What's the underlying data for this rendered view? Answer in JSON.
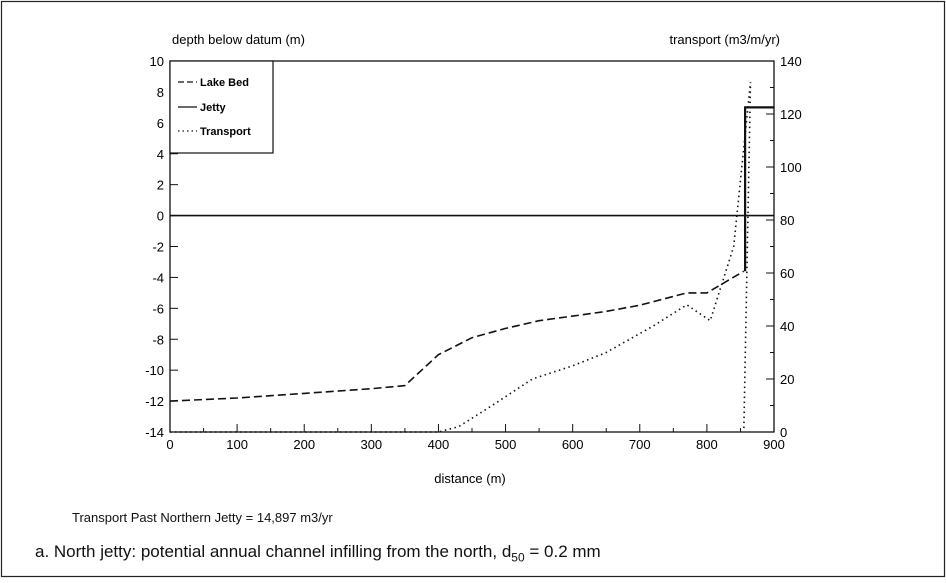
{
  "chart_data": {
    "type": "line",
    "xlabel": "distance (m)",
    "ylabel_left": "depth below datum (m)",
    "ylabel_right": "transport (m3/m/yr)",
    "xlim": [
      0,
      900
    ],
    "ylim_left": [
      -14,
      10
    ],
    "ylim_right": [
      0,
      140
    ],
    "x_ticks": [
      "0",
      "100",
      "200",
      "300",
      "400",
      "500",
      "600",
      "700",
      "800",
      "900"
    ],
    "y_left_ticks": [
      "10",
      "8",
      "6",
      "4",
      "2",
      "0",
      "-2",
      "-4",
      "-6",
      "-8",
      "-10",
      "-12",
      "-14"
    ],
    "y_right_ticks": [
      "140",
      "120",
      "100",
      "80",
      "60",
      "40",
      "20",
      "0"
    ],
    "legend": [
      "Lake Bed",
      "Jetty",
      "Transport"
    ],
    "legend_position": "top-left",
    "grid": false,
    "series": [
      {
        "name": "Lake Bed",
        "axis": "left",
        "style": "dashed",
        "points": [
          [
            0,
            -12
          ],
          [
            100,
            -11.8
          ],
          [
            200,
            -11.5
          ],
          [
            300,
            -11.2
          ],
          [
            350,
            -11
          ],
          [
            400,
            -9
          ],
          [
            450,
            -7.9
          ],
          [
            500,
            -7.3
          ],
          [
            550,
            -6.8
          ],
          [
            600,
            -6.5
          ],
          [
            650,
            -6.2
          ],
          [
            700,
            -5.8
          ],
          [
            770,
            -5
          ],
          [
            800,
            -5
          ],
          [
            855,
            -3.6
          ]
        ]
      },
      {
        "name": "Jetty",
        "axis": "left",
        "style": "solid",
        "points": [
          [
            857,
            -3.6
          ],
          [
            857,
            7
          ],
          [
            900,
            7
          ]
        ]
      },
      {
        "name": "Transport",
        "axis": "right",
        "style": "dotted",
        "points": [
          [
            0,
            0
          ],
          [
            300,
            0
          ],
          [
            400,
            0
          ],
          [
            430,
            2
          ],
          [
            480,
            10
          ],
          [
            540,
            20
          ],
          [
            600,
            25
          ],
          [
            650,
            30
          ],
          [
            720,
            40
          ],
          [
            770,
            48
          ],
          [
            805,
            42
          ],
          [
            840,
            70
          ],
          [
            865,
            132
          ],
          [
            855,
            0
          ]
        ]
      },
      {
        "name": "Datum",
        "axis": "left",
        "style": "solid",
        "points": [
          [
            0,
            0
          ],
          [
            900,
            0
          ]
        ]
      }
    ]
  },
  "summary": "Transport Past Northern Jetty = 14,897 m3/yr",
  "caption": {
    "prefix": "a.  North jetty:  potential annual channel infilling from the north, d",
    "subscript": "50",
    "suffix": " = 0.2 mm"
  }
}
